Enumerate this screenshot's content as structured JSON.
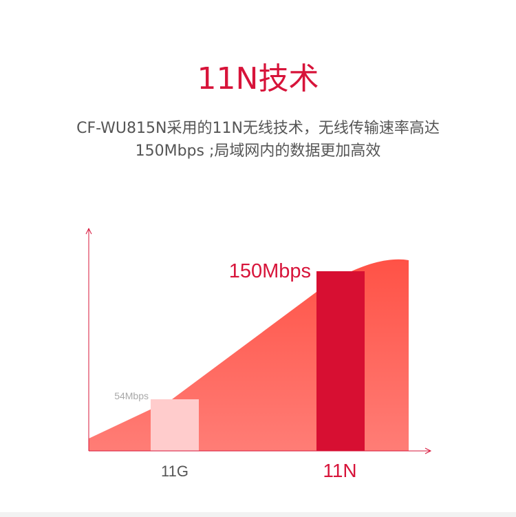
{
  "header": {
    "title": "11N技术",
    "subtitle_line1": "CF-WU815N采用的11N无线技术，无线传输速率高达",
    "subtitle_line2": "150Mbps ;局域网内的数据更加高效"
  },
  "colors": {
    "accent": "#d7143a",
    "area": "#ff5a4e",
    "bar_11g": "#ffcccc",
    "bar_11n": "#d70f32",
    "axis": "#d7143a"
  },
  "chart_data": {
    "type": "bar",
    "categories": [
      "11G",
      "11N"
    ],
    "values": [
      54,
      150
    ],
    "data_labels": [
      "54Mbps",
      "150Mbps"
    ],
    "title": "",
    "xlabel": "",
    "ylabel": "",
    "ylim": [
      0,
      160
    ],
    "grid": false,
    "background": "rising red area shape"
  }
}
